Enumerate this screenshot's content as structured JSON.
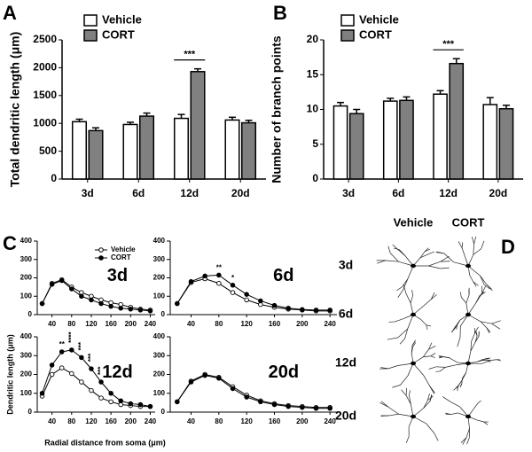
{
  "chart_data": [
    {
      "type": "bar",
      "label": "A",
      "ylabel": "Total dendritic length (μm)",
      "categories": [
        "3d",
        "6d",
        "12d",
        "20d"
      ],
      "series": [
        {
          "name": "Vehicle",
          "color": "#ffffff",
          "values": [
            1030,
            980,
            1090,
            1060
          ],
          "errors": [
            45,
            40,
            70,
            50
          ]
        },
        {
          "name": "CORT",
          "color": "#808080",
          "values": [
            870,
            1130,
            1930,
            1010
          ],
          "errors": [
            50,
            55,
            50,
            45
          ]
        }
      ],
      "ylim": [
        0,
        2500
      ],
      "yticks": [
        0,
        500,
        1000,
        1500,
        2000,
        2500
      ],
      "annotations": [
        {
          "text": "***",
          "category": "12d"
        }
      ]
    },
    {
      "type": "bar",
      "label": "B",
      "ylabel": "Number of branch points",
      "categories": [
        "3d",
        "6d",
        "12d",
        "20d"
      ],
      "series": [
        {
          "name": "Vehicle",
          "color": "#ffffff",
          "values": [
            10.5,
            11.2,
            12.2,
            10.7
          ],
          "errors": [
            0.5,
            0.4,
            0.5,
            1.0
          ]
        },
        {
          "name": "CORT",
          "color": "#808080",
          "values": [
            9.4,
            11.3,
            16.6,
            10.1
          ],
          "errors": [
            0.6,
            0.5,
            0.7,
            0.5
          ]
        }
      ],
      "ylim": [
        0,
        20
      ],
      "yticks": [
        0,
        5,
        10,
        15,
        20
      ],
      "annotations": [
        {
          "text": "***",
          "category": "12d"
        }
      ]
    },
    {
      "type": "line",
      "label": "C",
      "title": "3d",
      "x": [
        20,
        40,
        60,
        80,
        100,
        120,
        140,
        160,
        180,
        200,
        220,
        240
      ],
      "series": [
        {
          "name": "Vehicle",
          "marker": "open",
          "values": [
            60,
            170,
            190,
            150,
            120,
            100,
            80,
            65,
            55,
            40,
            30,
            25
          ]
        },
        {
          "name": "CORT",
          "marker": "filled",
          "values": [
            60,
            165,
            185,
            140,
            100,
            80,
            60,
            45,
            35,
            30,
            25,
            20
          ]
        }
      ],
      "xlim": [
        10,
        250
      ],
      "xticks": [
        40,
        80,
        120,
        160,
        200,
        240
      ],
      "ylim": [
        0,
        400
      ],
      "yticks": [
        0,
        100,
        200,
        300,
        400
      ]
    },
    {
      "type": "line",
      "title": "6d",
      "x": [
        20,
        40,
        60,
        80,
        100,
        120,
        140,
        160,
        180,
        200,
        220,
        240
      ],
      "series": [
        {
          "name": "Vehicle",
          "marker": "open",
          "values": [
            60,
            175,
            195,
            170,
            120,
            80,
            55,
            40,
            30,
            25,
            20,
            20
          ]
        },
        {
          "name": "CORT",
          "marker": "filled",
          "values": [
            60,
            180,
            210,
            215,
            160,
            110,
            75,
            50,
            35,
            28,
            25,
            25
          ]
        }
      ],
      "xlim": [
        10,
        250
      ],
      "xticks": [
        40,
        80,
        120,
        160,
        200,
        240
      ],
      "ylim": [
        0,
        400
      ],
      "yticks": [
        0,
        100,
        200,
        300,
        400
      ],
      "annotations": [
        {
          "text": "**",
          "x": 80
        },
        {
          "text": "*",
          "x": 100
        }
      ]
    },
    {
      "type": "line",
      "title": "12d",
      "ylabel": "Dendritic length (μm)",
      "xlabel": "Radial distance from soma (μm)",
      "x": [
        20,
        40,
        60,
        80,
        100,
        120,
        140,
        160,
        180,
        200,
        220,
        240
      ],
      "series": [
        {
          "name": "Vehicle",
          "marker": "open",
          "values": [
            85,
            200,
            235,
            205,
            160,
            115,
            75,
            55,
            40,
            35,
            30,
            30
          ]
        },
        {
          "name": "CORT",
          "marker": "filled",
          "values": [
            100,
            250,
            320,
            330,
            290,
            230,
            160,
            100,
            60,
            45,
            40,
            30
          ]
        }
      ],
      "xlim": [
        10,
        250
      ],
      "xticks": [
        40,
        80,
        120,
        160,
        200,
        240
      ],
      "ylim": [
        0,
        400
      ],
      "yticks": [
        0,
        100,
        200,
        300,
        400
      ],
      "annotations": [
        {
          "text": "**",
          "x": 60
        },
        {
          "text": "****",
          "x": 80
        },
        {
          "text": "***",
          "x": 100
        },
        {
          "text": "***",
          "x": 120
        },
        {
          "text": "***",
          "x": 140
        }
      ]
    },
    {
      "type": "line",
      "title": "20d",
      "x": [
        20,
        40,
        60,
        80,
        100,
        120,
        140,
        160,
        180,
        200,
        220,
        240
      ],
      "series": [
        {
          "name": "Vehicle",
          "marker": "open",
          "values": [
            55,
            165,
            200,
            185,
            135,
            90,
            60,
            45,
            35,
            30,
            25,
            25
          ]
        },
        {
          "name": "CORT",
          "marker": "filled",
          "values": [
            55,
            160,
            195,
            180,
            125,
            80,
            55,
            40,
            30,
            25,
            20,
            20
          ]
        }
      ],
      "xlim": [
        10,
        250
      ],
      "xticks": [
        40,
        80,
        120,
        160,
        200,
        240
      ],
      "ylim": [
        0,
        400
      ],
      "yticks": [
        0,
        100,
        200,
        300,
        400
      ]
    }
  ],
  "panel_d": {
    "label": "D",
    "columns": [
      "Vehicle",
      "CORT"
    ],
    "rows": [
      "3d",
      "6d",
      "12d",
      "20d"
    ]
  }
}
